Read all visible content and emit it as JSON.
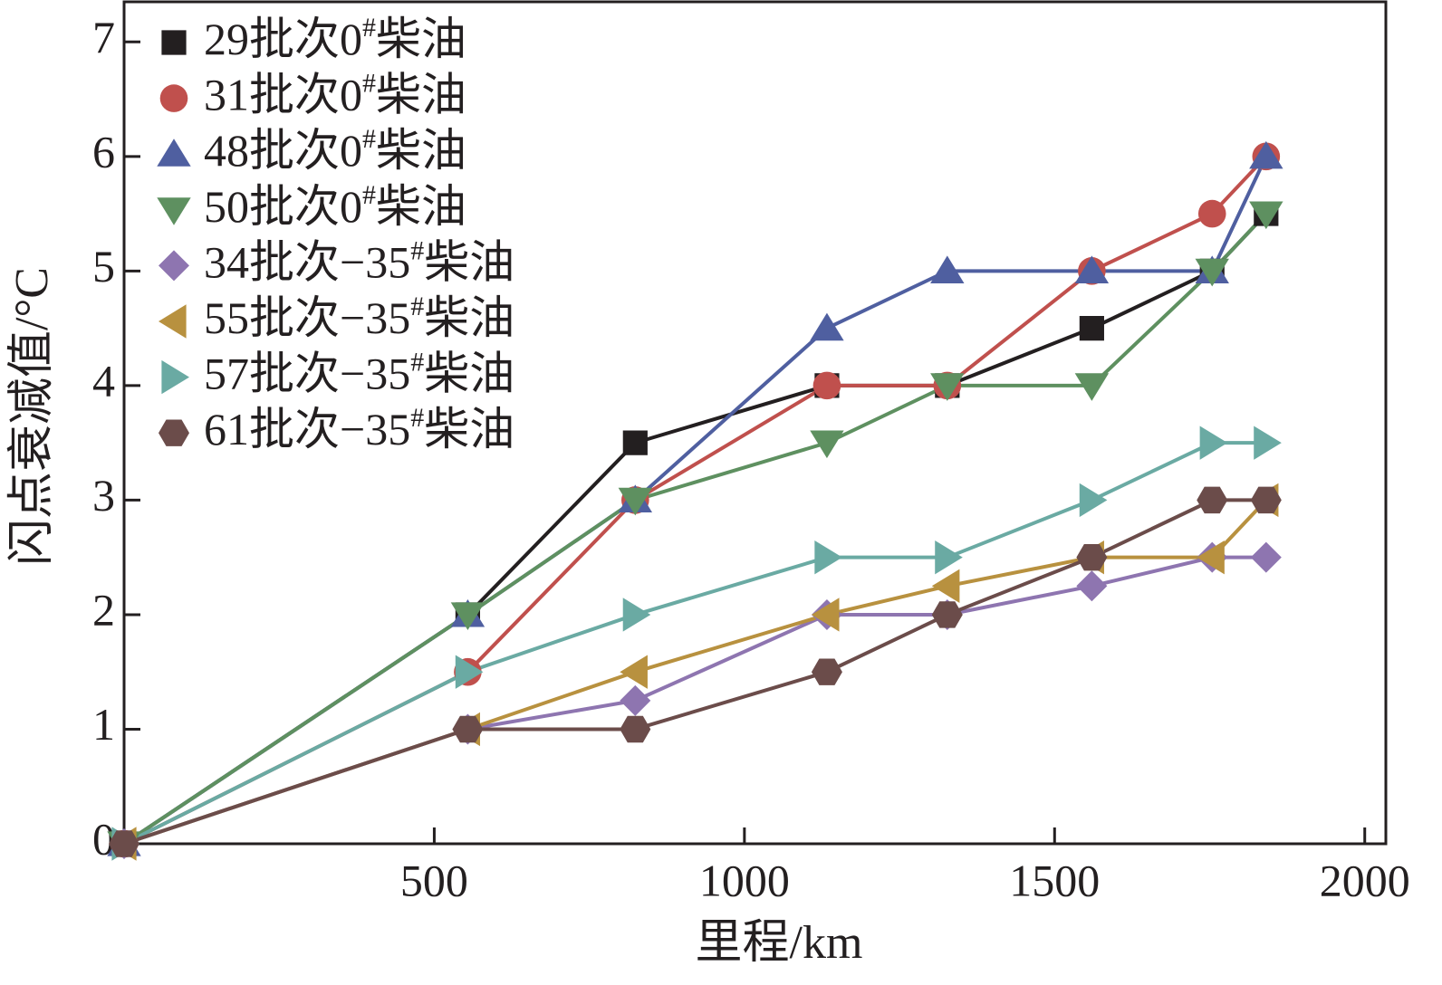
{
  "chart_data": {
    "type": "line",
    "x_label": "里程/km",
    "y_label": "闪点衰减值/°C",
    "x": [
      0,
      554,
      824,
      1133,
      1327,
      1560,
      1754,
      1841
    ],
    "xlim": [
      0,
      2034
    ],
    "ylim": [
      0,
      7.35
    ],
    "xticks": [
      500,
      1000,
      1500,
      2000
    ],
    "yticks": [
      0,
      1,
      2,
      3,
      4,
      5,
      6,
      7
    ],
    "legend": "upper-left",
    "series": [
      {
        "name": "29批次0#柴油",
        "color": "#231f20",
        "marker": "square",
        "values": [
          0,
          2,
          3.5,
          4,
          4,
          4.5,
          5,
          5.5
        ]
      },
      {
        "name": "31批次0#柴油",
        "color": "#c0504d",
        "marker": "circle",
        "values": [
          0,
          1.5,
          3,
          4,
          4,
          5,
          5.5,
          6
        ]
      },
      {
        "name": "48批次0#柴油",
        "color": "#4f5fa0",
        "marker": "triangle-up",
        "values": [
          0,
          2,
          3,
          4.5,
          5,
          5,
          5,
          6
        ]
      },
      {
        "name": "50批次0#柴油",
        "color": "#5e9060",
        "marker": "triangle-down",
        "values": [
          0,
          2,
          3,
          3.5,
          4,
          4,
          5,
          5.5
        ]
      },
      {
        "name": "34批次−35#柴油",
        "color": "#8e75b0",
        "marker": "diamond",
        "values": [
          0,
          1,
          1.25,
          2,
          2,
          2.25,
          2.5,
          2.5
        ]
      },
      {
        "name": "55批次−35#柴油",
        "color": "#b8913f",
        "marker": "triangle-left",
        "values": [
          0,
          1,
          1.5,
          2,
          2.25,
          2.5,
          2.5,
          3
        ]
      },
      {
        "name": "57批次−35#柴油",
        "color": "#6aaaa3",
        "marker": "triangle-right",
        "values": [
          0,
          1.5,
          2,
          2.5,
          2.5,
          3,
          3.5,
          3.5
        ]
      },
      {
        "name": "61批次−35#柴油",
        "color": "#6b4c4a",
        "marker": "hexagon",
        "values": [
          0,
          1,
          1,
          1.5,
          2,
          2.5,
          3,
          3
        ]
      }
    ]
  }
}
